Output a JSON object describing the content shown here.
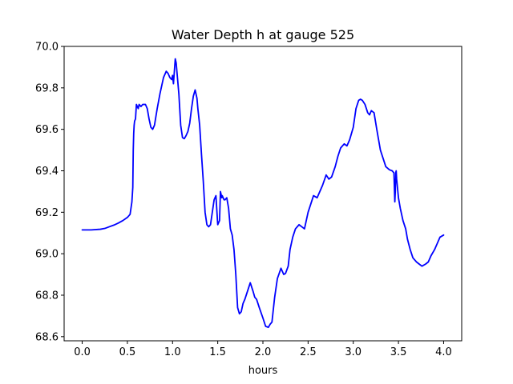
{
  "chart_data": {
    "type": "line",
    "title": "Water Depth h at gauge 525",
    "xlabel": "hours",
    "ylabel": "",
    "xlim": [
      -0.2,
      4.2
    ],
    "ylim": [
      68.58,
      70.0
    ],
    "xticks": [
      0.0,
      0.5,
      1.0,
      1.5,
      2.0,
      2.5,
      3.0,
      3.5,
      4.0
    ],
    "xtick_labels": [
      "0.0",
      "0.5",
      "1.0",
      "1.5",
      "2.0",
      "2.5",
      "3.0",
      "3.5",
      "4.0"
    ],
    "yticks": [
      68.6,
      68.8,
      69.0,
      69.2,
      69.4,
      69.6,
      69.8,
      70.0
    ],
    "ytick_labels": [
      "68.6",
      "68.8",
      "69.0",
      "69.2",
      "69.4",
      "69.6",
      "69.8",
      "70.0"
    ],
    "grid": false,
    "series": [
      {
        "name": "",
        "color": "#0000ff",
        "x": [
          0.0,
          0.1,
          0.2,
          0.25,
          0.3,
          0.35,
          0.4,
          0.45,
          0.5,
          0.53,
          0.55,
          0.56,
          0.565,
          0.57,
          0.575,
          0.58,
          0.59,
          0.6,
          0.61,
          0.62,
          0.63,
          0.65,
          0.67,
          0.7,
          0.72,
          0.74,
          0.76,
          0.78,
          0.8,
          0.83,
          0.86,
          0.9,
          0.93,
          0.95,
          0.97,
          0.99,
          1.0,
          1.01,
          1.02,
          1.03,
          1.04,
          1.05,
          1.07,
          1.09,
          1.11,
          1.13,
          1.15,
          1.17,
          1.19,
          1.21,
          1.23,
          1.25,
          1.27,
          1.28,
          1.3,
          1.32,
          1.34,
          1.36,
          1.38,
          1.4,
          1.42,
          1.44,
          1.46,
          1.48,
          1.5,
          1.52,
          1.53,
          1.535,
          1.54,
          1.545,
          1.55,
          1.56,
          1.57,
          1.58,
          1.6,
          1.62,
          1.64,
          1.66,
          1.68,
          1.7,
          1.72,
          1.74,
          1.76,
          1.78,
          1.8,
          1.83,
          1.86,
          1.89,
          1.91,
          1.93,
          1.96,
          2.0,
          2.03,
          2.06,
          2.08,
          2.1,
          2.13,
          2.16,
          2.2,
          2.23,
          2.25,
          2.28,
          2.3,
          2.33,
          2.36,
          2.4,
          2.43,
          2.46,
          2.5,
          2.53,
          2.56,
          2.6,
          2.63,
          2.66,
          2.7,
          2.73,
          2.76,
          2.8,
          2.83,
          2.86,
          2.9,
          2.93,
          2.96,
          3.0,
          3.03,
          3.06,
          3.08,
          3.1,
          3.13,
          3.16,
          3.18,
          3.2,
          3.23,
          3.26,
          3.3,
          3.33,
          3.36,
          3.4,
          3.43,
          3.45,
          3.46,
          3.465,
          3.47,
          3.475,
          3.48,
          3.5,
          3.52,
          3.55,
          3.58,
          3.6,
          3.63,
          3.66,
          3.7,
          3.73,
          3.76,
          3.8,
          3.83,
          3.86,
          3.9,
          3.93,
          3.96,
          4.0
        ],
        "y": [
          69.115,
          69.115,
          69.118,
          69.122,
          69.13,
          69.138,
          69.148,
          69.16,
          69.175,
          69.19,
          69.25,
          69.32,
          69.5,
          69.58,
          69.62,
          69.64,
          69.65,
          69.72,
          69.71,
          69.7,
          69.72,
          69.71,
          69.72,
          69.72,
          69.7,
          69.65,
          69.61,
          69.6,
          69.62,
          69.7,
          69.77,
          69.85,
          69.88,
          69.87,
          69.85,
          69.84,
          69.86,
          69.82,
          69.88,
          69.94,
          69.92,
          69.87,
          69.77,
          69.62,
          69.56,
          69.555,
          69.57,
          69.59,
          69.63,
          69.7,
          69.76,
          69.79,
          69.75,
          69.7,
          69.62,
          69.48,
          69.35,
          69.2,
          69.14,
          69.13,
          69.14,
          69.2,
          69.26,
          69.28,
          69.14,
          69.16,
          69.3,
          69.29,
          69.28,
          69.27,
          69.28,
          69.27,
          69.26,
          69.26,
          69.27,
          69.22,
          69.12,
          69.09,
          69.02,
          68.9,
          68.74,
          68.71,
          68.72,
          68.76,
          68.78,
          68.82,
          68.86,
          68.82,
          68.79,
          68.78,
          68.74,
          68.69,
          68.65,
          68.645,
          68.66,
          68.67,
          68.79,
          68.88,
          68.93,
          68.9,
          68.905,
          68.94,
          69.02,
          69.08,
          69.12,
          69.14,
          69.13,
          69.12,
          69.2,
          69.24,
          69.28,
          69.27,
          69.3,
          69.33,
          69.38,
          69.36,
          69.37,
          69.42,
          69.47,
          69.51,
          69.53,
          69.52,
          69.55,
          69.61,
          69.7,
          69.74,
          69.745,
          69.74,
          69.72,
          69.68,
          69.67,
          69.69,
          69.68,
          69.6,
          69.5,
          69.46,
          69.42,
          69.405,
          69.4,
          69.39,
          69.25,
          69.3,
          69.39,
          69.4,
          69.36,
          69.27,
          69.22,
          69.16,
          69.12,
          69.07,
          69.02,
          68.98,
          68.96,
          68.95,
          68.94,
          68.95,
          68.96,
          68.99,
          69.02,
          69.05,
          69.08,
          69.09
        ]
      }
    ]
  }
}
